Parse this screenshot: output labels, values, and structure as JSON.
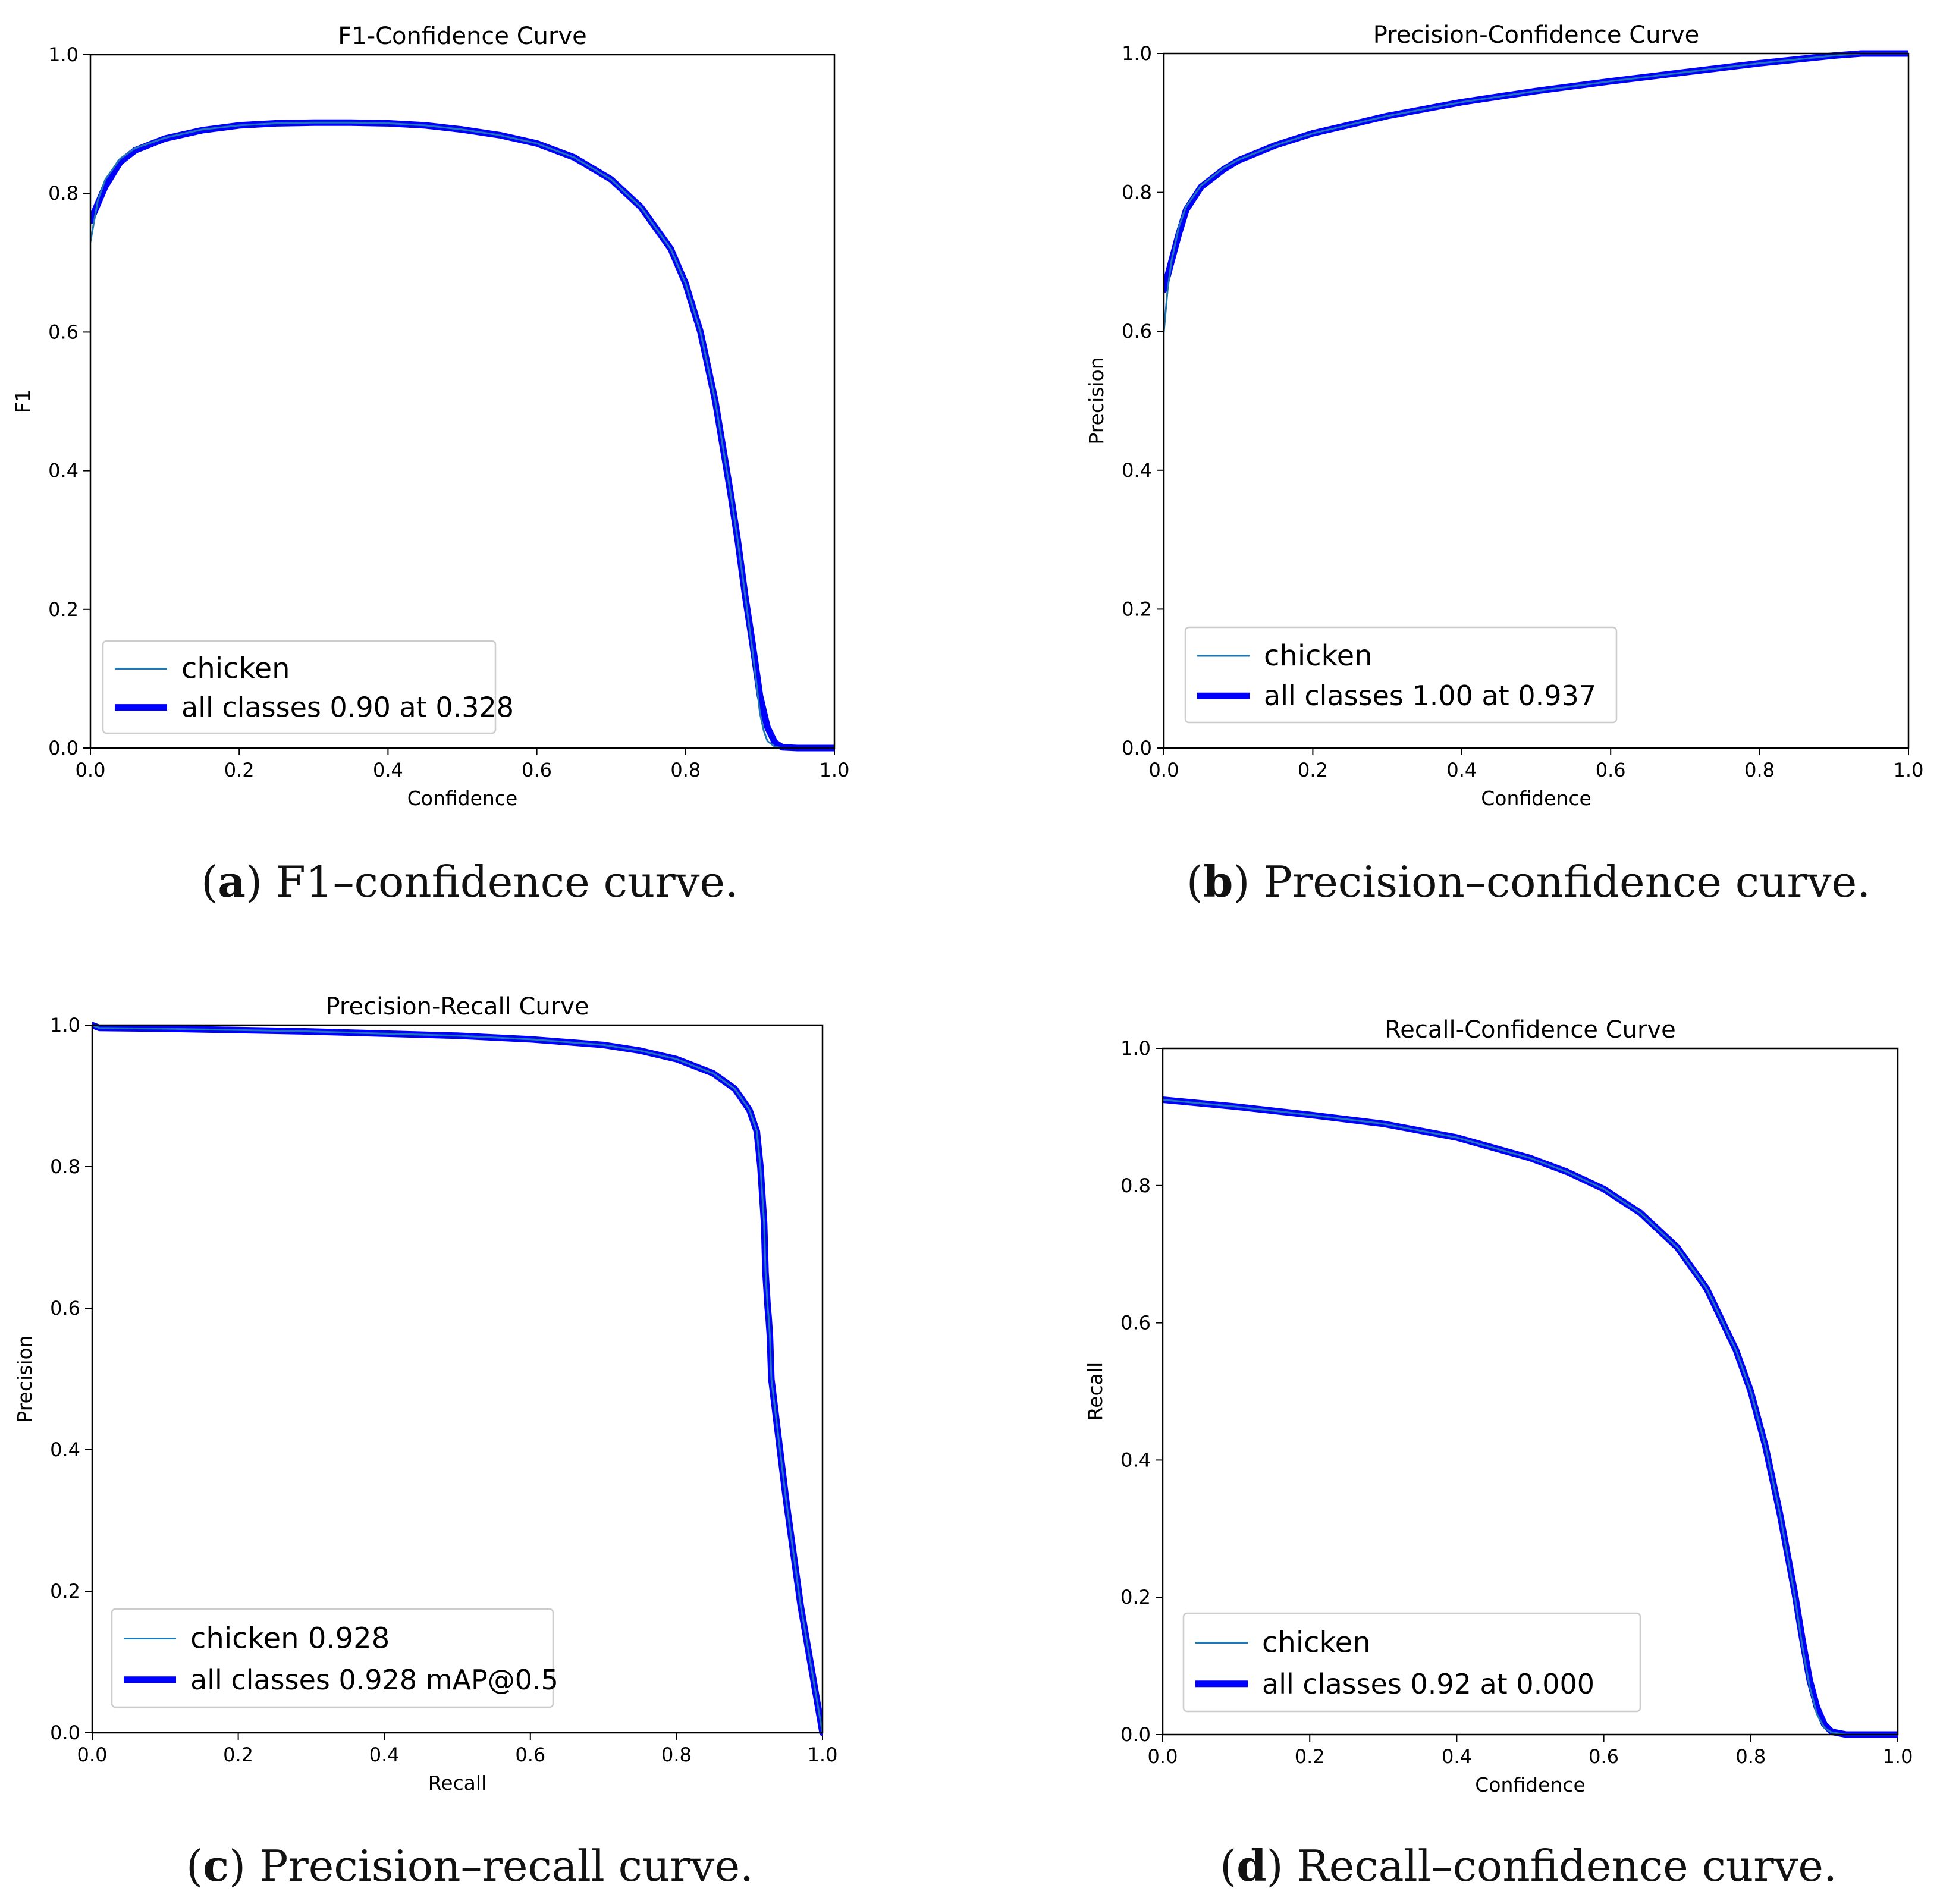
{
  "colors": {
    "chicken": "#1f77b4",
    "all_classes": "#0000ff",
    "axis": "#000000",
    "legend_border": "#cccccc"
  },
  "chart_data": [
    {
      "id": "a",
      "type": "line",
      "title": "F1-Confidence Curve",
      "xlabel": "Confidence",
      "ylabel": "F1",
      "xlim": [
        0,
        1
      ],
      "ylim": [
        0,
        1
      ],
      "xticks": [
        "0.0",
        "0.2",
        "0.4",
        "0.6",
        "0.8",
        "1.0"
      ],
      "yticks": [
        "0.0",
        "0.2",
        "0.4",
        "0.6",
        "0.8",
        "1.0"
      ],
      "grid": false,
      "legend_position": "lower-left",
      "series": [
        {
          "name": "chicken",
          "x": [
            0,
            0.01,
            0.02,
            0.04,
            0.06,
            0.1,
            0.15,
            0.2,
            0.25,
            0.3,
            0.35,
            0.4,
            0.45,
            0.5,
            0.55,
            0.6,
            0.65,
            0.7,
            0.74,
            0.78,
            0.8,
            0.82,
            0.84,
            0.86,
            0.87,
            0.88,
            0.89,
            0.9,
            0.905,
            0.91,
            0.92,
            0.93,
            0.95,
            1.0
          ],
          "y": [
            0.73,
            0.79,
            0.82,
            0.85,
            0.865,
            0.88,
            0.892,
            0.898,
            0.901,
            0.902,
            0.902,
            0.901,
            0.898,
            0.892,
            0.884,
            0.872,
            0.852,
            0.82,
            0.78,
            0.72,
            0.67,
            0.6,
            0.5,
            0.37,
            0.3,
            0.22,
            0.14,
            0.05,
            0.025,
            0.01,
            0.002,
            0,
            0,
            0
          ]
        },
        {
          "name": "all classes 0.90 at 0.328",
          "x": [
            0,
            0.01,
            0.02,
            0.04,
            0.06,
            0.1,
            0.15,
            0.2,
            0.25,
            0.3,
            0.35,
            0.4,
            0.45,
            0.5,
            0.55,
            0.6,
            0.65,
            0.7,
            0.74,
            0.78,
            0.8,
            0.82,
            0.84,
            0.86,
            0.87,
            0.88,
            0.89,
            0.9,
            0.91,
            0.92,
            0.93,
            0.95,
            1.0
          ],
          "y": [
            0.76,
            0.785,
            0.81,
            0.845,
            0.862,
            0.879,
            0.891,
            0.898,
            0.901,
            0.902,
            0.902,
            0.901,
            0.898,
            0.892,
            0.884,
            0.872,
            0.852,
            0.82,
            0.78,
            0.72,
            0.67,
            0.6,
            0.5,
            0.37,
            0.3,
            0.22,
            0.15,
            0.075,
            0.03,
            0.008,
            0.001,
            0,
            0
          ]
        }
      ]
    },
    {
      "id": "b",
      "type": "line",
      "title": "Precision-Confidence Curve",
      "xlabel": "Confidence",
      "ylabel": "Precision",
      "xlim": [
        0,
        1
      ],
      "ylim": [
        0,
        1
      ],
      "xticks": [
        "0.0",
        "0.2",
        "0.4",
        "0.6",
        "0.8",
        "1.0"
      ],
      "yticks": [
        "0.0",
        "0.2",
        "0.4",
        "0.6",
        "0.8",
        "1.0"
      ],
      "grid": false,
      "legend_position": "lower-left",
      "series": [
        {
          "name": "chicken",
          "x": [
            0,
            0.005,
            0.01,
            0.02,
            0.03,
            0.05,
            0.08,
            0.1,
            0.15,
            0.2,
            0.3,
            0.4,
            0.5,
            0.6,
            0.7,
            0.8,
            0.9,
            0.937,
            1.0
          ],
          "y": [
            0.6,
            0.66,
            0.7,
            0.75,
            0.78,
            0.81,
            0.835,
            0.847,
            0.868,
            0.885,
            0.91,
            0.93,
            0.946,
            0.96,
            0.973,
            0.986,
            0.997,
            1.0,
            1.0
          ]
        },
        {
          "name": "all classes 1.00 at 0.937",
          "x": [
            0,
            0.005,
            0.01,
            0.02,
            0.03,
            0.05,
            0.08,
            0.1,
            0.15,
            0.2,
            0.3,
            0.4,
            0.5,
            0.6,
            0.7,
            0.8,
            0.9,
            0.937,
            1.0
          ],
          "y": [
            0.66,
            0.68,
            0.7,
            0.74,
            0.775,
            0.808,
            0.833,
            0.846,
            0.868,
            0.885,
            0.91,
            0.93,
            0.946,
            0.96,
            0.973,
            0.986,
            0.997,
            1.0,
            1.0
          ]
        }
      ]
    },
    {
      "id": "c",
      "type": "line",
      "title": "Precision-Recall Curve",
      "xlabel": "Recall",
      "ylabel": "Precision",
      "xlim": [
        0,
        1
      ],
      "ylim": [
        0,
        1
      ],
      "xticks": [
        "0.0",
        "0.2",
        "0.4",
        "0.6",
        "0.8",
        "1.0"
      ],
      "yticks": [
        "0.0",
        "0.2",
        "0.4",
        "0.6",
        "0.8",
        "1.0"
      ],
      "grid": false,
      "legend_position": "lower-left",
      "series": [
        {
          "name": "chicken 0.928",
          "x": [
            0,
            0.01,
            0.1,
            0.2,
            0.3,
            0.4,
            0.5,
            0.6,
            0.7,
            0.75,
            0.8,
            0.85,
            0.88,
            0.9,
            0.91,
            0.915,
            0.92,
            0.922,
            0.925,
            0.926,
            0.928,
            0.93,
            0.95,
            0.97,
            1.0
          ],
          "y": [
            1.0,
            0.996,
            0.995,
            0.993,
            0.991,
            0.988,
            0.985,
            0.98,
            0.972,
            0.964,
            0.952,
            0.932,
            0.91,
            0.88,
            0.85,
            0.8,
            0.72,
            0.65,
            0.6,
            0.59,
            0.56,
            0.5,
            0.33,
            0.18,
            0.0
          ]
        },
        {
          "name": "all classes 0.928 mAP@0.5",
          "x": [
            0,
            0.01,
            0.1,
            0.2,
            0.3,
            0.4,
            0.5,
            0.6,
            0.7,
            0.75,
            0.8,
            0.85,
            0.88,
            0.9,
            0.91,
            0.915,
            0.92,
            0.922,
            0.925,
            0.926,
            0.928,
            0.93,
            0.95,
            0.97,
            1.0
          ],
          "y": [
            1.0,
            0.996,
            0.995,
            0.993,
            0.991,
            0.988,
            0.985,
            0.98,
            0.972,
            0.964,
            0.952,
            0.932,
            0.91,
            0.88,
            0.85,
            0.8,
            0.72,
            0.65,
            0.6,
            0.59,
            0.56,
            0.5,
            0.33,
            0.18,
            0.0
          ]
        }
      ]
    },
    {
      "id": "d",
      "type": "line",
      "title": "Recall-Confidence Curve",
      "xlabel": "Confidence",
      "ylabel": "Recall",
      "xlim": [
        0,
        1
      ],
      "ylim": [
        0,
        1
      ],
      "xticks": [
        "0.0",
        "0.2",
        "0.4",
        "0.6",
        "0.8",
        "1.0"
      ],
      "yticks": [
        "0.0",
        "0.2",
        "0.4",
        "0.6",
        "0.8",
        "1.0"
      ],
      "grid": false,
      "legend_position": "lower-left",
      "series": [
        {
          "name": "chicken",
          "x": [
            0,
            0.1,
            0.2,
            0.3,
            0.4,
            0.5,
            0.55,
            0.6,
            0.65,
            0.7,
            0.74,
            0.78,
            0.8,
            0.82,
            0.84,
            0.86,
            0.87,
            0.88,
            0.89,
            0.9,
            0.91,
            0.93,
            0.95,
            1.0
          ],
          "y": [
            0.925,
            0.915,
            0.903,
            0.89,
            0.87,
            0.84,
            0.82,
            0.795,
            0.76,
            0.71,
            0.65,
            0.56,
            0.5,
            0.42,
            0.32,
            0.2,
            0.13,
            0.07,
            0.03,
            0.01,
            0.003,
            0,
            0,
            0
          ]
        },
        {
          "name": "all classes 0.92 at 0.000",
          "x": [
            0,
            0.1,
            0.2,
            0.3,
            0.4,
            0.5,
            0.55,
            0.6,
            0.65,
            0.7,
            0.74,
            0.78,
            0.8,
            0.82,
            0.84,
            0.86,
            0.87,
            0.88,
            0.89,
            0.9,
            0.91,
            0.93,
            0.95,
            1.0
          ],
          "y": [
            0.925,
            0.915,
            0.903,
            0.89,
            0.87,
            0.84,
            0.82,
            0.795,
            0.76,
            0.71,
            0.65,
            0.56,
            0.5,
            0.42,
            0.32,
            0.205,
            0.14,
            0.08,
            0.04,
            0.015,
            0.004,
            0,
            0,
            0
          ]
        }
      ]
    }
  ],
  "captions": [
    {
      "letter": "a",
      "text": "F1–confidence curve."
    },
    {
      "letter": "b",
      "text": "Precision–confidence curve."
    },
    {
      "letter": "c",
      "text": "Precision–recall curve."
    },
    {
      "letter": "d",
      "text": "Recall–confidence curve."
    }
  ]
}
